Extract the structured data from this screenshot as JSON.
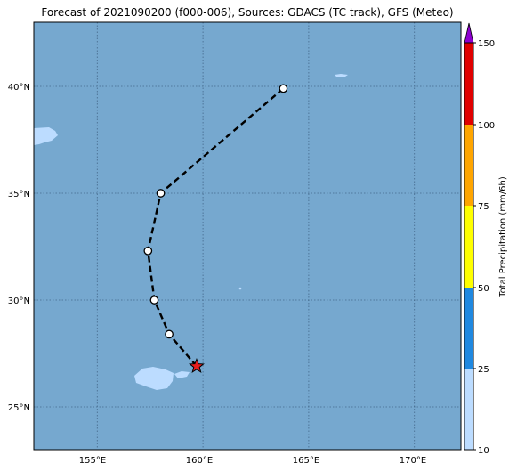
{
  "title": "Forecast of 2021090200 (f000-006), Sources: GDACS (TC track), GFS (Meteo)",
  "colors": {
    "ocean": "#76a8cf",
    "land": "#bcdcff",
    "track": "#000000",
    "current_position_marker": "#e81c1c",
    "colorbar": [
      "#bcdcff",
      "#1f88e0",
      "#ffff00",
      "#ffa500",
      "#e00000",
      "#8e00d0"
    ]
  },
  "map": {
    "lat_ticks": [
      "25°N",
      "30°N",
      "35°N",
      "40°N"
    ],
    "lon_ticks": [
      "155°E",
      "160°E",
      "165°E",
      "170°E"
    ],
    "lat_range": [
      23,
      43
    ],
    "lon_range": [
      152,
      172.2
    ],
    "gridlines": true
  },
  "track": {
    "points": [
      {
        "lon": 159.7,
        "lat": 26.9,
        "marker": "current-star"
      },
      {
        "lon": 158.4,
        "lat": 28.4,
        "marker": "circle"
      },
      {
        "lon": 157.7,
        "lat": 30.0,
        "marker": "circle"
      },
      {
        "lon": 157.4,
        "lat": 32.3,
        "marker": "circle"
      },
      {
        "lon": 158.0,
        "lat": 35.0,
        "marker": "circle"
      },
      {
        "lon": 163.8,
        "lat": 39.9,
        "marker": "circle"
      }
    ]
  },
  "colorbar": {
    "label": "Total Precipitation (mm/6h)",
    "ticks": [
      "10",
      "25",
      "50",
      "75",
      "100",
      "150"
    ]
  }
}
